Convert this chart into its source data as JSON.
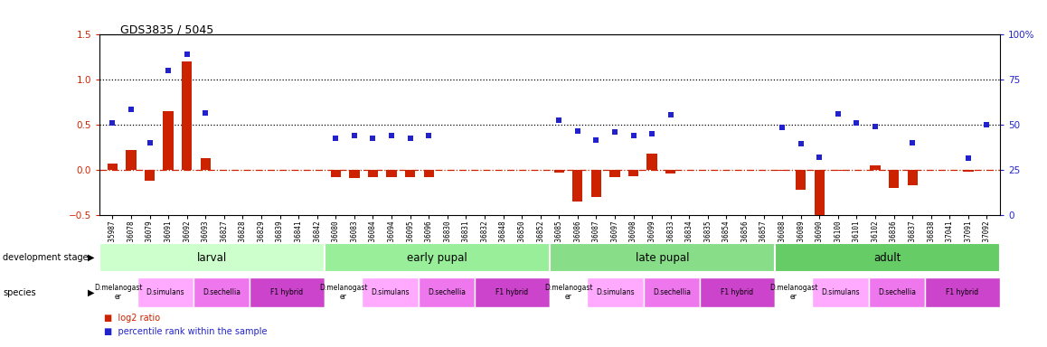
{
  "title": "GDS3835 / 5045",
  "samples": [
    "GSM435987",
    "GSM436078",
    "GSM436079",
    "GSM436091",
    "GSM436092",
    "GSM436093",
    "GSM436827",
    "GSM436828",
    "GSM436829",
    "GSM436839",
    "GSM436841",
    "GSM436842",
    "GSM436080",
    "GSM436083",
    "GSM436084",
    "GSM436094",
    "GSM436095",
    "GSM436096",
    "GSM436830",
    "GSM436831",
    "GSM436832",
    "GSM436848",
    "GSM436850",
    "GSM436852",
    "GSM436085",
    "GSM436086",
    "GSM436087",
    "GSM436097",
    "GSM436098",
    "GSM436099",
    "GSM436833",
    "GSM436834",
    "GSM436835",
    "GSM436854",
    "GSM436856",
    "GSM436857",
    "GSM436088",
    "GSM436089",
    "GSM436090",
    "GSM436100",
    "GSM436101",
    "GSM436102",
    "GSM436836",
    "GSM436837",
    "GSM436838",
    "GSM437041",
    "GSM437091",
    "GSM437092"
  ],
  "log2_ratio": [
    0.07,
    0.22,
    -0.12,
    0.65,
    1.2,
    0.13,
    0.0,
    0.0,
    0.0,
    0.0,
    0.0,
    0.0,
    -0.08,
    -0.09,
    -0.08,
    -0.08,
    -0.08,
    -0.08,
    0.0,
    0.0,
    0.0,
    0.0,
    0.0,
    0.0,
    -0.03,
    -0.35,
    -0.3,
    -0.08,
    -0.07,
    0.18,
    -0.04,
    0.0,
    0.0,
    0.0,
    0.0,
    0.0,
    -0.01,
    -0.22,
    -0.5,
    -0.01,
    0.0,
    0.05,
    -0.2,
    -0.17,
    0.0,
    0.0,
    -0.02,
    0.0
  ],
  "percentile_left": [
    0.52,
    0.67,
    0.3,
    1.1,
    1.28,
    0.63,
    null,
    null,
    null,
    null,
    null,
    null,
    0.35,
    0.38,
    0.35,
    0.38,
    0.35,
    0.38,
    null,
    null,
    null,
    null,
    null,
    null,
    0.55,
    0.43,
    0.33,
    0.42,
    0.38,
    0.4,
    0.61,
    null,
    null,
    null,
    null,
    null,
    0.47,
    0.29,
    0.14,
    0.62,
    0.52,
    0.48,
    null,
    0.3,
    null,
    null,
    0.13,
    0.5
  ],
  "ylim_left": [
    -0.5,
    1.5
  ],
  "ylim_right": [
    0,
    100
  ],
  "left_ticks": [
    -0.5,
    0.0,
    0.5,
    1.0,
    1.5
  ],
  "right_ticks": [
    0,
    25,
    50,
    75,
    100
  ],
  "development_stages": [
    {
      "label": "larval",
      "start": 0,
      "end": 12,
      "color": "#ccffcc"
    },
    {
      "label": "early pupal",
      "start": 12,
      "end": 24,
      "color": "#99ee99"
    },
    {
      "label": "late pupal",
      "start": 24,
      "end": 36,
      "color": "#88dd88"
    },
    {
      "label": "adult",
      "start": 36,
      "end": 48,
      "color": "#66cc66"
    }
  ],
  "species_blocks": [
    {
      "label": "D.melanogast\ner",
      "start": 0,
      "end": 2,
      "color": "#ffffff"
    },
    {
      "label": "D.simulans",
      "start": 2,
      "end": 5,
      "color": "#ffaaff"
    },
    {
      "label": "D.sechellia",
      "start": 5,
      "end": 8,
      "color": "#ee77ee"
    },
    {
      "label": "F1 hybrid",
      "start": 8,
      "end": 12,
      "color": "#cc44cc"
    },
    {
      "label": "D.melanogast\ner",
      "start": 12,
      "end": 14,
      "color": "#ffffff"
    },
    {
      "label": "D.simulans",
      "start": 14,
      "end": 17,
      "color": "#ffaaff"
    },
    {
      "label": "D.sechellia",
      "start": 17,
      "end": 20,
      "color": "#ee77ee"
    },
    {
      "label": "F1 hybrid",
      "start": 20,
      "end": 24,
      "color": "#cc44cc"
    },
    {
      "label": "D.melanogast\ner",
      "start": 24,
      "end": 26,
      "color": "#ffffff"
    },
    {
      "label": "D.simulans",
      "start": 26,
      "end": 29,
      "color": "#ffaaff"
    },
    {
      "label": "D.sechellia",
      "start": 29,
      "end": 32,
      "color": "#ee77ee"
    },
    {
      "label": "F1 hybrid",
      "start": 32,
      "end": 36,
      "color": "#cc44cc"
    },
    {
      "label": "D.melanogast\ner",
      "start": 36,
      "end": 38,
      "color": "#ffffff"
    },
    {
      "label": "D.simulans",
      "start": 38,
      "end": 41,
      "color": "#ffaaff"
    },
    {
      "label": "D.sechellia",
      "start": 41,
      "end": 44,
      "color": "#ee77ee"
    },
    {
      "label": "F1 hybrid",
      "start": 44,
      "end": 48,
      "color": "#cc44cc"
    }
  ],
  "bar_color": "#cc2200",
  "dot_color": "#2222cc",
  "bg_color": "#ffffff"
}
